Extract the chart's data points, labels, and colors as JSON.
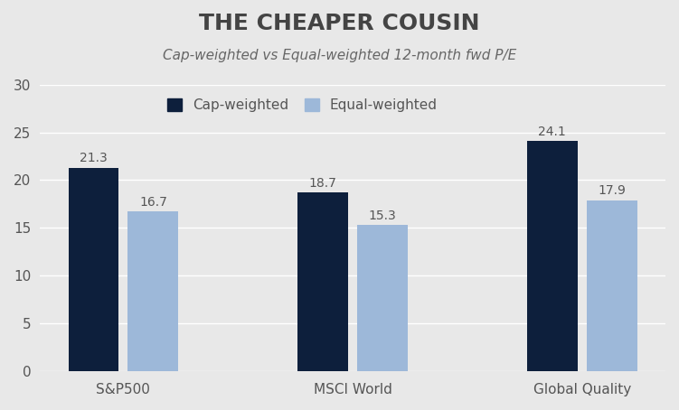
{
  "title": "THE CHEAPER COUSIN",
  "subtitle": "Cap-weighted vs Equal-weighted 12-month fwd P/E",
  "categories": [
    "S&P500",
    "MSCI World",
    "Global Quality"
  ],
  "cap_weighted": [
    21.3,
    18.7,
    24.1
  ],
  "equal_weighted": [
    16.7,
    15.3,
    17.9
  ],
  "cap_color": "#0d1f3c",
  "equal_color": "#9db8d9",
  "background_color": "#e8e8e8",
  "ylim": [
    0,
    30
  ],
  "yticks": [
    0,
    5,
    10,
    15,
    20,
    25,
    30
  ],
  "legend_labels": [
    "Cap-weighted",
    "Equal-weighted"
  ],
  "bar_width": 0.22,
  "title_fontsize": 18,
  "subtitle_fontsize": 11,
  "label_fontsize": 10,
  "tick_fontsize": 11,
  "legend_fontsize": 11
}
